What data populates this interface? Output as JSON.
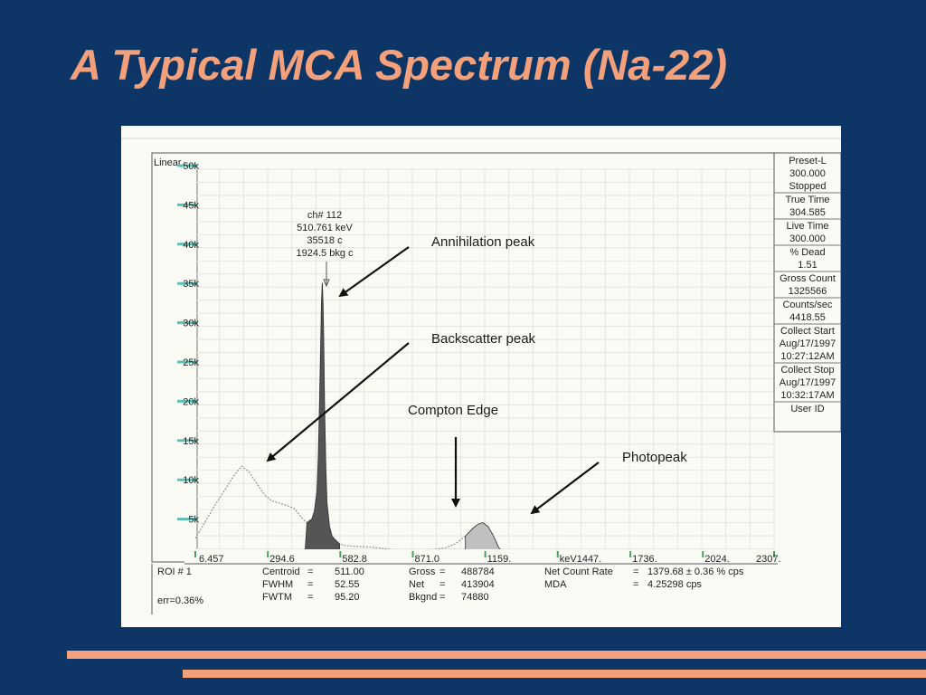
{
  "title": "A Typical MCA Spectrum (Na-22)",
  "colors": {
    "background": "#0d3566",
    "accent": "#f4a07a",
    "peak_fill": "#555555",
    "photopeak_fill": "#c0c0c0"
  },
  "chart_data": {
    "type": "area",
    "scale_label": "Linear",
    "y_ticks": [
      "5k",
      "10k",
      "15k",
      "20k",
      "25k",
      "30k",
      "35k",
      "40k",
      "45k",
      "50k"
    ],
    "ylim": [
      0,
      50000
    ],
    "x_ticks": [
      "6.457",
      "294.6",
      "582.8",
      "871.0",
      "1159.",
      "keV1447.",
      "1736.",
      "2024.",
      "2307."
    ],
    "x_tick_values": [
      6.457,
      294.6,
      582.8,
      871.0,
      1159,
      1447,
      1736,
      2024,
      2307
    ],
    "xlim": [
      6.457,
      2307
    ],
    "series": [
      {
        "name": "spectrum",
        "x": [
          6.457,
          40,
          80,
          120,
          160,
          190,
          220,
          250,
          280,
          310,
          340,
          370,
          400,
          430,
          450,
          470,
          480,
          490,
          495,
          500,
          505,
          508,
          511,
          514,
          517,
          520,
          525,
          530,
          540,
          550,
          560,
          570,
          580,
          600,
          640,
          700,
          760,
          800,
          850,
          900,
          950,
          1000,
          1040,
          1080,
          1110,
          1130,
          1150,
          1170,
          1190,
          1210,
          1230,
          1260,
          1300,
          1400,
          1500,
          1600,
          1700,
          1800,
          1900,
          2000,
          2100,
          2200,
          2307
        ],
        "y": [
          3000,
          4800,
          7000,
          9000,
          11000,
          12200,
          11500,
          10000,
          8600,
          7800,
          7500,
          7200,
          6800,
          5600,
          5000,
          5500,
          6500,
          9000,
          13000,
          20000,
          28000,
          33000,
          35518,
          33000,
          28000,
          20000,
          12000,
          7500,
          4500,
          3300,
          2900,
          2600,
          2300,
          2100,
          2000,
          1900,
          1700,
          1500,
          1450,
          1400,
          1550,
          1800,
          2300,
          3300,
          4300,
          4800,
          5000,
          4500,
          3400,
          2000,
          900,
          350,
          150,
          80,
          60,
          50,
          40,
          40,
          30,
          30,
          25,
          20,
          20
        ]
      },
      {
        "name": "annihilation-roi",
        "x": [
          440,
          450,
          470,
          480,
          490,
          495,
          500,
          505,
          508,
          511,
          514,
          517,
          520,
          525,
          530,
          540,
          550,
          560,
          570,
          580
        ],
        "y": [
          0,
          5000,
          5500,
          6500,
          9000,
          13000,
          20000,
          28000,
          33000,
          35518,
          33000,
          28000,
          20000,
          12000,
          7500,
          4500,
          3300,
          2900,
          2600,
          2300
        ]
      },
      {
        "name": "photopeak-roi",
        "x": [
          1080,
          1110,
          1130,
          1150,
          1170,
          1190,
          1210,
          1230
        ],
        "y": [
          3300,
          4300,
          4800,
          5000,
          4500,
          3400,
          2000,
          900
        ]
      }
    ],
    "peak_label": [
      "ch# 112",
      "510.761 keV",
      "35518 c",
      "1924.5 bkg c"
    ],
    "annotations": [
      {
        "id": "annihilation",
        "text": "Annihilation peak"
      },
      {
        "id": "backscatter",
        "text": "Backscatter peak"
      },
      {
        "id": "compton",
        "text": "Compton Edge"
      },
      {
        "id": "photopeak",
        "text": "Photopeak"
      }
    ]
  },
  "side_panel": [
    {
      "label": "Preset-L",
      "value": "300.000",
      "extra": "Stopped"
    },
    {
      "label": "True Time",
      "value": "304.585"
    },
    {
      "label": "Live Time",
      "value": "300.000"
    },
    {
      "label": "% Dead",
      "value": "1.51"
    },
    {
      "label": "Gross Count",
      "value": "1325566"
    },
    {
      "label": "Counts/sec",
      "value": "4418.55"
    },
    {
      "label": "Collect Start",
      "value": "Aug/17/1997",
      "extra": "10:27:12AM"
    },
    {
      "label": "Collect Stop",
      "value": "Aug/17/1997",
      "extra": "10:32:17AM"
    },
    {
      "label": "User ID"
    }
  ],
  "roi_table": {
    "roi": "ROI # 1",
    "err": "err=0.36%",
    "rows": [
      [
        "Centroid",
        "=",
        "511.00",
        "Gross",
        "=",
        "488784",
        "Net Count Rate",
        "=",
        "1379.68 ± 0.36 % cps"
      ],
      [
        "FWHM",
        "=",
        "52.55",
        "Net",
        "=",
        "413904",
        "MDA",
        "=",
        "4.25298 cps"
      ],
      [
        "FWTM",
        "=",
        "95.20",
        "Bkgnd",
        "=",
        "74880",
        "",
        "",
        ""
      ]
    ]
  }
}
